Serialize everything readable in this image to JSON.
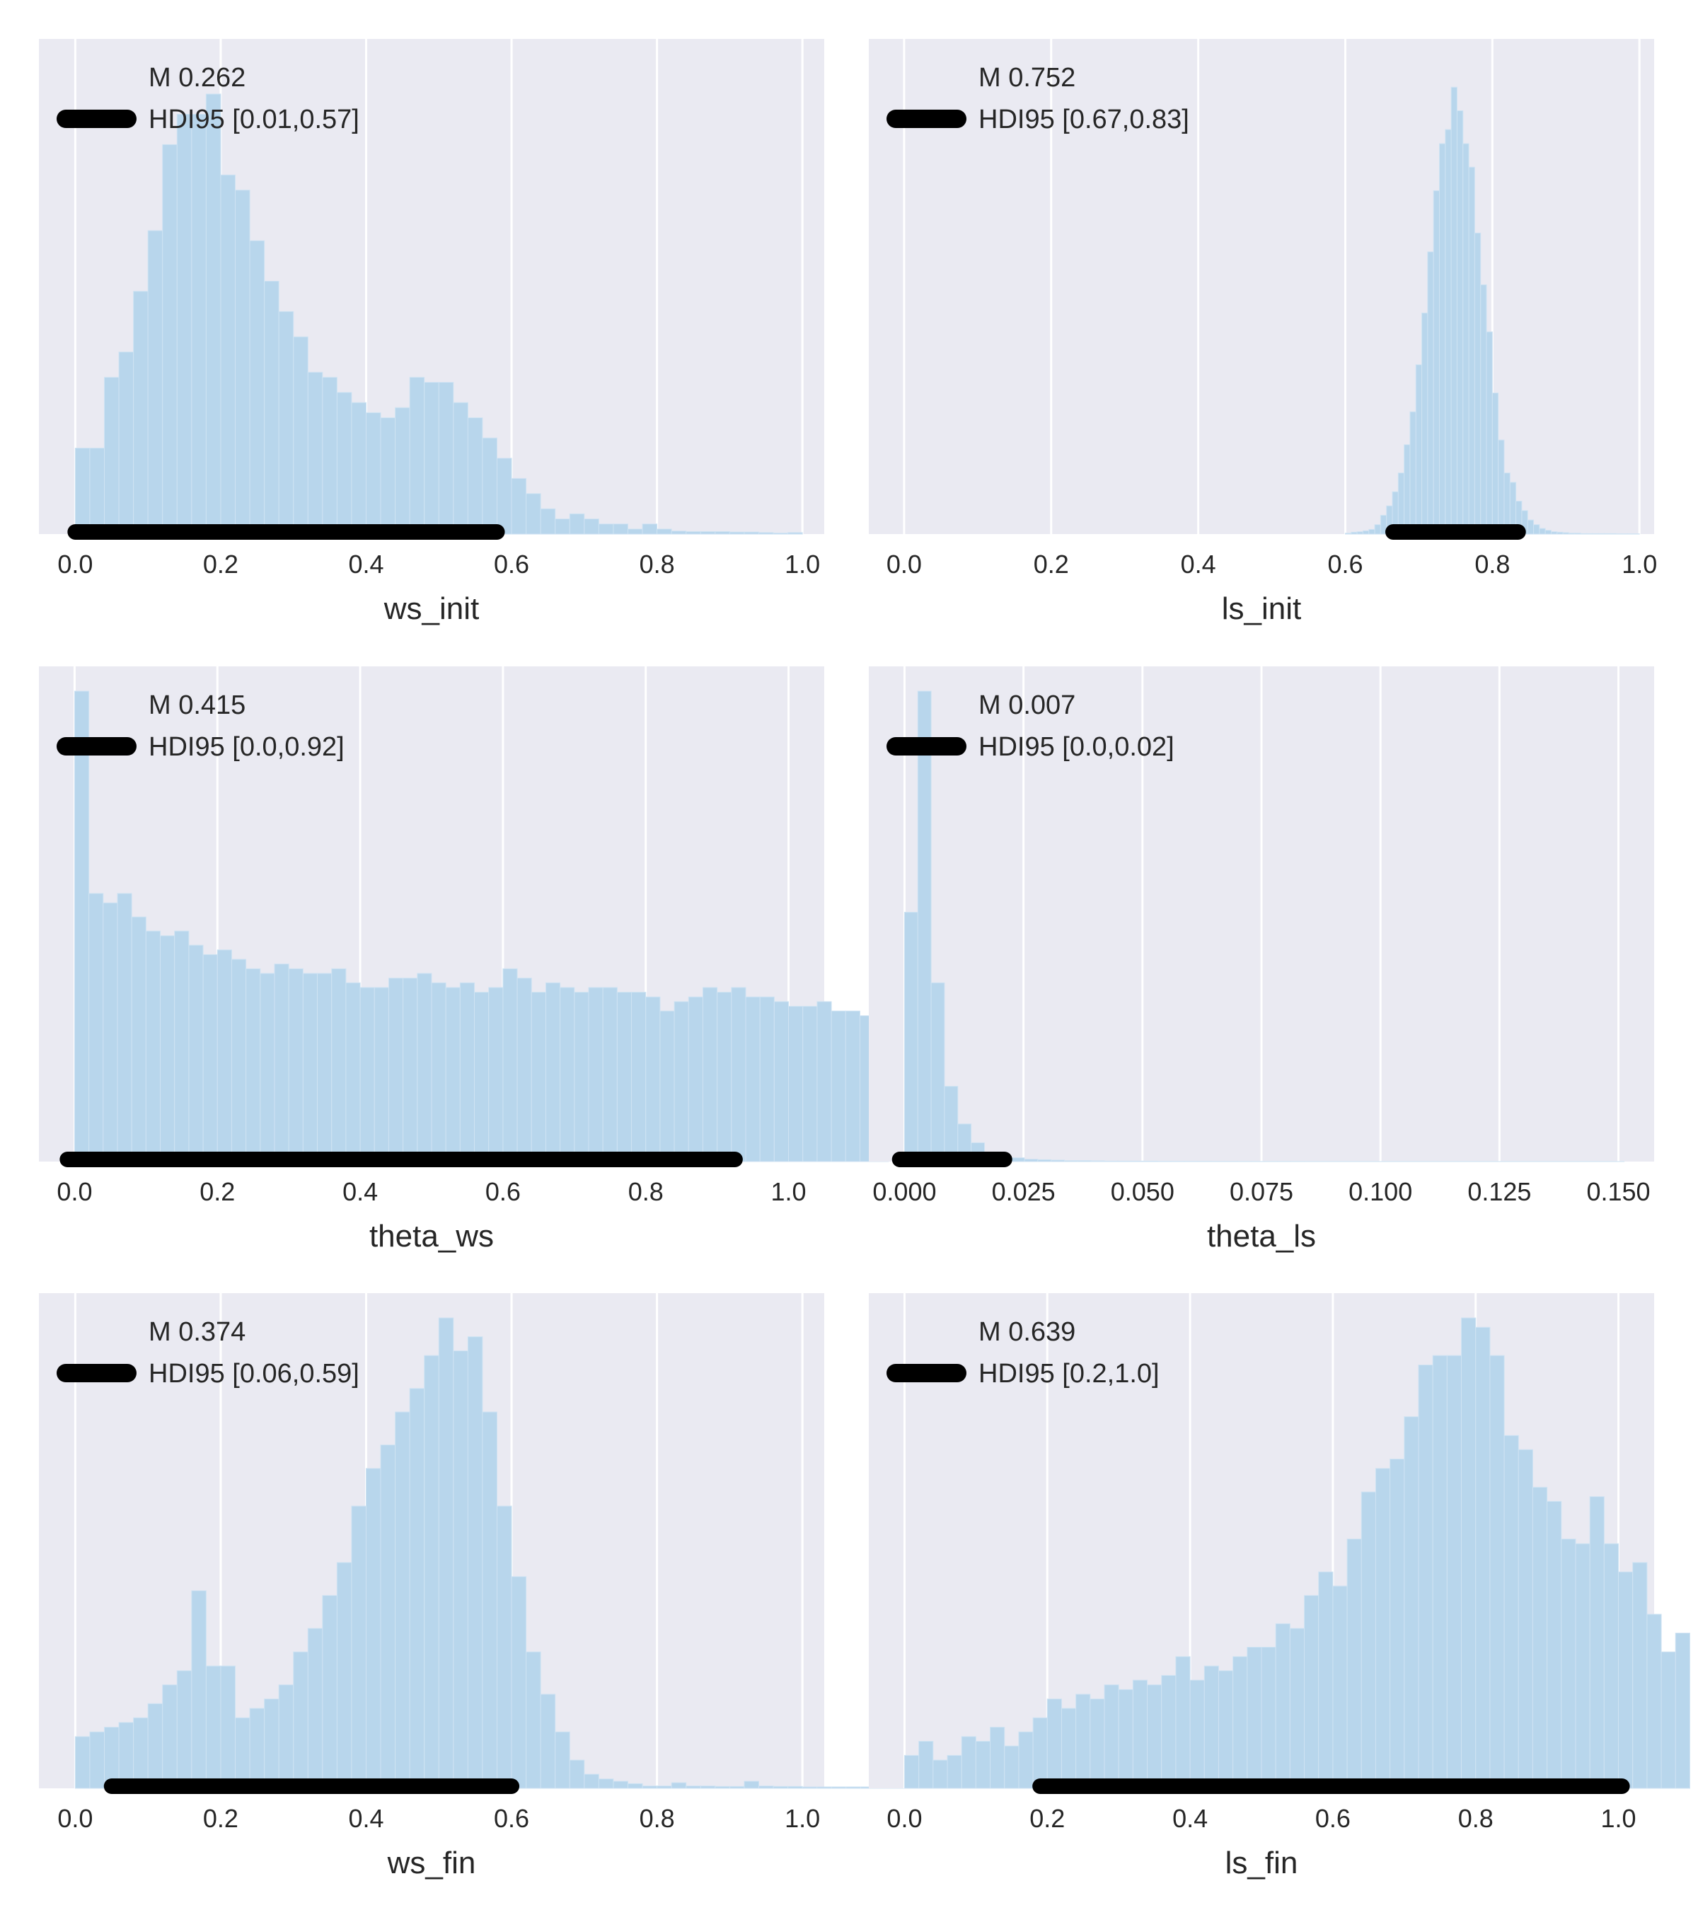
{
  "colors": {
    "bar_fill": "#b8d6ec",
    "bar_edge": "#cfe3f3",
    "panel_bg": "#eaeaf2",
    "grid": "#ffffff",
    "hdi_bar": "#000000",
    "text": "#262626"
  },
  "chart_data": [
    {
      "type": "bar",
      "xlabel": "ws_init",
      "xlim": [
        -0.05,
        1.03
      ],
      "xticks": [
        "0.0",
        "0.2",
        "0.4",
        "0.6",
        "0.8",
        "1.0"
      ],
      "tick_values": [
        0.0,
        0.2,
        0.4,
        0.6,
        0.8,
        1.0
      ],
      "bin_start": 0.0,
      "bin_width": 0.02,
      "values": [
        17,
        17,
        31,
        36,
        48,
        60,
        77,
        83,
        83,
        87,
        71,
        68,
        58,
        50,
        44,
        39,
        32,
        31,
        28,
        26,
        24,
        23,
        25,
        31,
        30,
        30,
        26,
        23,
        19,
        15,
        11,
        8,
        5,
        3,
        4,
        3,
        2,
        2,
        1,
        2,
        1,
        0.6,
        0.5,
        0.5,
        0.5,
        0.4,
        0.4,
        0.3,
        0.2,
        0.3
      ],
      "ymax": 93,
      "mean_label": "M 0.262",
      "hdi_label": "HDI95 [0.01,0.57]",
      "hdi_range": [
        0.0,
        0.58
      ],
      "grid": true,
      "legend_position": "upper-left"
    },
    {
      "type": "bar",
      "xlabel": "ls_init",
      "xlim": [
        -0.048,
        1.02
      ],
      "xticks": [
        "0.0",
        "0.2",
        "0.4",
        "0.6",
        "0.8",
        "1.0"
      ],
      "tick_values": [
        0.0,
        0.2,
        0.4,
        0.6,
        0.8,
        1.0
      ],
      "bin_start": 0.6,
      "bin_width": 0.008,
      "values": [
        0.2,
        0.4,
        0.5,
        0.7,
        1,
        2,
        4,
        6,
        9,
        13,
        19,
        26,
        36,
        47,
        60,
        73,
        83,
        86,
        95,
        90,
        83,
        78,
        64,
        53,
        43,
        30,
        20,
        13,
        11,
        7,
        5,
        3,
        2,
        1.2,
        0.8,
        0.5,
        0.4,
        0.3,
        0.2,
        0.2,
        0.1,
        0.1,
        0.1,
        0.1,
        0.1,
        0.1,
        0.05,
        0.05,
        0.05,
        0.05
      ],
      "ymax": 100,
      "mean_label": "M 0.752",
      "hdi_label": "HDI95 [0.67,0.83]",
      "hdi_range": [
        0.665,
        0.835
      ],
      "grid": true,
      "legend_position": "upper-left"
    },
    {
      "type": "bar",
      "xlabel": "theta_ws",
      "xlim": [
        -0.05,
        1.05
      ],
      "xticks": [
        "0.0",
        "0.2",
        "0.4",
        "0.6",
        "0.8",
        "1.0"
      ],
      "tick_values": [
        0.0,
        0.2,
        0.4,
        0.6,
        0.8,
        1.0
      ],
      "bin_start": 0.0,
      "bin_width": 0.02,
      "values": [
        100,
        57,
        55,
        57,
        52,
        49,
        48,
        49,
        46,
        44,
        45,
        43,
        41,
        40,
        42,
        41,
        40,
        40,
        41,
        38,
        37,
        37,
        39,
        39,
        40,
        38,
        37,
        38,
        36,
        37,
        41,
        39,
        36,
        38,
        37,
        36,
        37,
        37,
        36,
        36,
        35,
        32,
        34,
        35,
        37,
        36,
        37,
        35,
        35,
        34,
        33,
        33,
        34,
        32,
        32,
        31,
        29
      ],
      "ymax": 100,
      "mean_label": "M 0.415",
      "hdi_label": "HDI95 [0.0,0.92]",
      "hdi_range": [
        -0.01,
        0.925
      ],
      "grid": true,
      "legend_position": "upper-left"
    },
    {
      "type": "bar",
      "xlabel": "theta_ls",
      "xlim": [
        -0.0075,
        0.1575
      ],
      "xticks": [
        "0.000",
        "0.025",
        "0.050",
        "0.075",
        "0.100",
        "0.125",
        "0.150"
      ],
      "tick_values": [
        0.0,
        0.025,
        0.05,
        0.075,
        0.1,
        0.125,
        0.15
      ],
      "bin_start": 0.0,
      "bin_width": 0.0028,
      "values": [
        53,
        100,
        38,
        16,
        8,
        4,
        2,
        1.2,
        0.8,
        0.5,
        0.4,
        0.3,
        0.2,
        0.2,
        0.15,
        0.1,
        0.1,
        0.1,
        0.08,
        0.05,
        0.05,
        0.05,
        0.04,
        0.03,
        0.03,
        0.02,
        0.02,
        0.02,
        0.02,
        0.02,
        0.01,
        0.01,
        0.01,
        0.01,
        0.01,
        0.01,
        0.01,
        0.01,
        0.01,
        0.01,
        0.01,
        0.01,
        0.01,
        0.01,
        0.01,
        0.01,
        0.01,
        0.01,
        0.01,
        0.01,
        0.01,
        0.01,
        0.01,
        0.01
      ],
      "ymax": 100,
      "mean_label": "M 0.007",
      "hdi_label": "HDI95 [0.0,0.02]",
      "hdi_range": [
        -0.001,
        0.021
      ],
      "grid": true,
      "legend_position": "upper-left"
    },
    {
      "type": "bar",
      "xlabel": "ws_fin",
      "xlim": [
        -0.05,
        1.03
      ],
      "xticks": [
        "0.0",
        "0.2",
        "0.4",
        "0.6",
        "0.8",
        "1.0"
      ],
      "tick_values": [
        0.0,
        0.2,
        0.4,
        0.6,
        0.8,
        1.0
      ],
      "bin_start": 0.0,
      "bin_width": 0.02,
      "values": [
        11,
        12,
        13,
        14,
        15,
        18,
        22,
        25,
        42,
        26,
        26,
        15,
        17,
        19,
        22,
        29,
        34,
        41,
        48,
        60,
        68,
        73,
        80,
        85,
        92,
        100,
        93,
        96,
        80,
        60,
        45,
        29,
        20,
        12,
        6,
        3,
        2,
        1.5,
        1,
        0.5,
        0.5,
        1.2,
        0.5,
        0.5,
        0.4,
        0.4,
        1.5,
        0.5,
        0.4,
        0.4,
        0.3,
        0.3,
        0.3,
        0.3,
        0.3,
        0.3,
        0.3,
        0.3,
        1
      ],
      "ymax": 100,
      "mean_label": "M 0.374",
      "hdi_label": "HDI95 [0.06,0.59]",
      "hdi_range": [
        0.05,
        0.6
      ],
      "grid": true,
      "legend_position": "upper-left"
    },
    {
      "type": "bar",
      "xlabel": "ls_fin",
      "xlim": [
        -0.05,
        1.05
      ],
      "xticks": [
        "0.0",
        "0.2",
        "0.4",
        "0.6",
        "0.8",
        "1.0"
      ],
      "tick_values": [
        0.0,
        0.2,
        0.4,
        0.6,
        0.8,
        1.0
      ],
      "bin_start": 0.0,
      "bin_width": 0.02,
      "values": [
        7,
        10,
        6,
        7,
        11,
        10,
        13,
        9,
        12,
        15,
        19,
        17,
        20,
        19,
        22,
        21,
        23,
        22,
        24,
        28,
        23,
        26,
        25,
        28,
        30,
        30,
        35,
        34,
        41,
        46,
        43,
        53,
        63,
        68,
        70,
        79,
        90,
        92,
        92,
        100,
        98,
        92,
        75,
        72,
        64,
        61,
        53,
        52,
        62,
        52,
        46,
        48,
        37,
        29,
        33
      ],
      "ymax": 100,
      "mean_label": "M 0.639",
      "hdi_label": "HDI95 [0.2,1.0]",
      "hdi_range": [
        0.19,
        1.005
      ],
      "grid": true,
      "legend_position": "upper-left"
    }
  ]
}
